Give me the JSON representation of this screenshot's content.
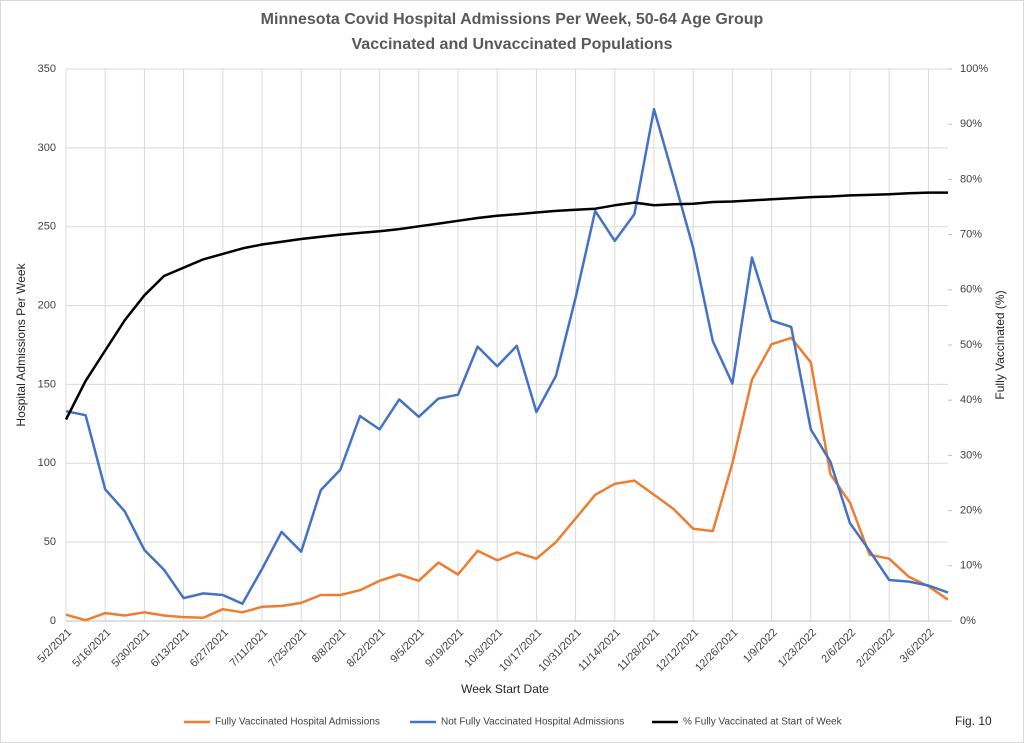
{
  "chart_data": {
    "type": "line",
    "title": "Minnesota Covid Hospital Admissions Per Week, 50-64 Age Group",
    "subtitle": "Vaccinated and Unvaccinated Populations",
    "xlabel": "Week Start Date",
    "ylabel": "Hospital Admissions Per Week",
    "y2label": "Fully Vaccinated (%)",
    "annotation": "Fig. 10",
    "categories": [
      "5/2/2021",
      null,
      "5/16/2021",
      null,
      "5/30/2021",
      null,
      "6/13/2021",
      null,
      "6/27/2021",
      null,
      "7/11/2021",
      null,
      "7/25/2021",
      null,
      "8/8/2021",
      null,
      "8/22/2021",
      null,
      "9/5/2021",
      null,
      "9/19/2021",
      null,
      "10/3/2021",
      null,
      "10/17/2021",
      null,
      "10/31/2021",
      null,
      "11/14/2021",
      null,
      "11/28/2021",
      null,
      "12/12/2021",
      null,
      "12/26/2021",
      null,
      "1/9/2022",
      null,
      "1/23/2022",
      null,
      "2/6/2022",
      null,
      "2/20/2022",
      null,
      "3/6/2022",
      null
    ],
    "series": [
      {
        "name": "Fully Vaccinated Hospital Admissions",
        "color": "#ed7d31",
        "values": [
          4,
          0.5,
          5,
          3.5,
          5.5,
          3.5,
          2.5,
          2,
          7.5,
          5.5,
          9,
          9.5,
          11.5,
          16.5,
          16.5,
          19.5,
          25.5,
          29.5,
          25.5,
          37,
          29.5,
          44.5,
          38.5,
          43.5,
          39.5,
          50,
          65,
          80,
          87,
          89,
          80,
          71,
          58.5,
          57,
          100,
          153,
          175.5,
          179.5,
          164,
          93,
          75,
          42,
          39.5,
          28,
          22,
          13.5
        ]
      },
      {
        "name": "Not Fully Vaccinated Hospital Admissions",
        "color": "#4472c4",
        "values": [
          133,
          130.5,
          83.5,
          69.5,
          45,
          32.5,
          14.5,
          17.5,
          16.5,
          11,
          33,
          56.5,
          44,
          83,
          96,
          130,
          121.5,
          140.5,
          129.5,
          141,
          143.5,
          174,
          161.5,
          174.5,
          132.5,
          155.5,
          205,
          260,
          241,
          258,
          324.5,
          281,
          236.5,
          177.5,
          150.5,
          230.5,
          190.5,
          186.5,
          121.5,
          101,
          62,
          44.5,
          26,
          25,
          22.5,
          18
        ]
      },
      {
        "name": "% Fully Vaccinated at Start of Week",
        "color": "#000000",
        "axis": "y2",
        "values": [
          36.5,
          43.5,
          49,
          54.5,
          59,
          62.5,
          64,
          65.5,
          66.5,
          67.5,
          68.2,
          68.7,
          69.2,
          69.6,
          70,
          70.3,
          70.6,
          71,
          71.5,
          72,
          72.5,
          73,
          73.4,
          73.7,
          74,
          74.3,
          74.5,
          74.7,
          75.3,
          75.8,
          75.3,
          75.5,
          75.6,
          75.9,
          76,
          76.2,
          76.4,
          76.6,
          76.8,
          76.9,
          77.1,
          77.2,
          77.3,
          77.5,
          77.6,
          77.6
        ]
      }
    ],
    "ylim": [
      0,
      350
    ],
    "yticks": [
      0,
      50,
      100,
      150,
      200,
      250,
      300,
      350
    ],
    "y2lim": [
      0,
      100
    ],
    "y2ticks": [
      {
        "value": 0,
        "label": "0%"
      },
      {
        "value": 10,
        "label": "10%"
      },
      {
        "value": 20,
        "label": "20%"
      },
      {
        "value": 30,
        "label": "30%"
      },
      {
        "value": 40,
        "label": "40%"
      },
      {
        "value": 50,
        "label": "50%"
      },
      {
        "value": 60,
        "label": "60%"
      },
      {
        "value": 70,
        "label": "70%"
      },
      {
        "value": 80,
        "label": "80%"
      },
      {
        "value": 90,
        "label": "90%"
      },
      {
        "value": 100,
        "label": "100%"
      }
    ],
    "grid": true,
    "legend": "bottom"
  }
}
